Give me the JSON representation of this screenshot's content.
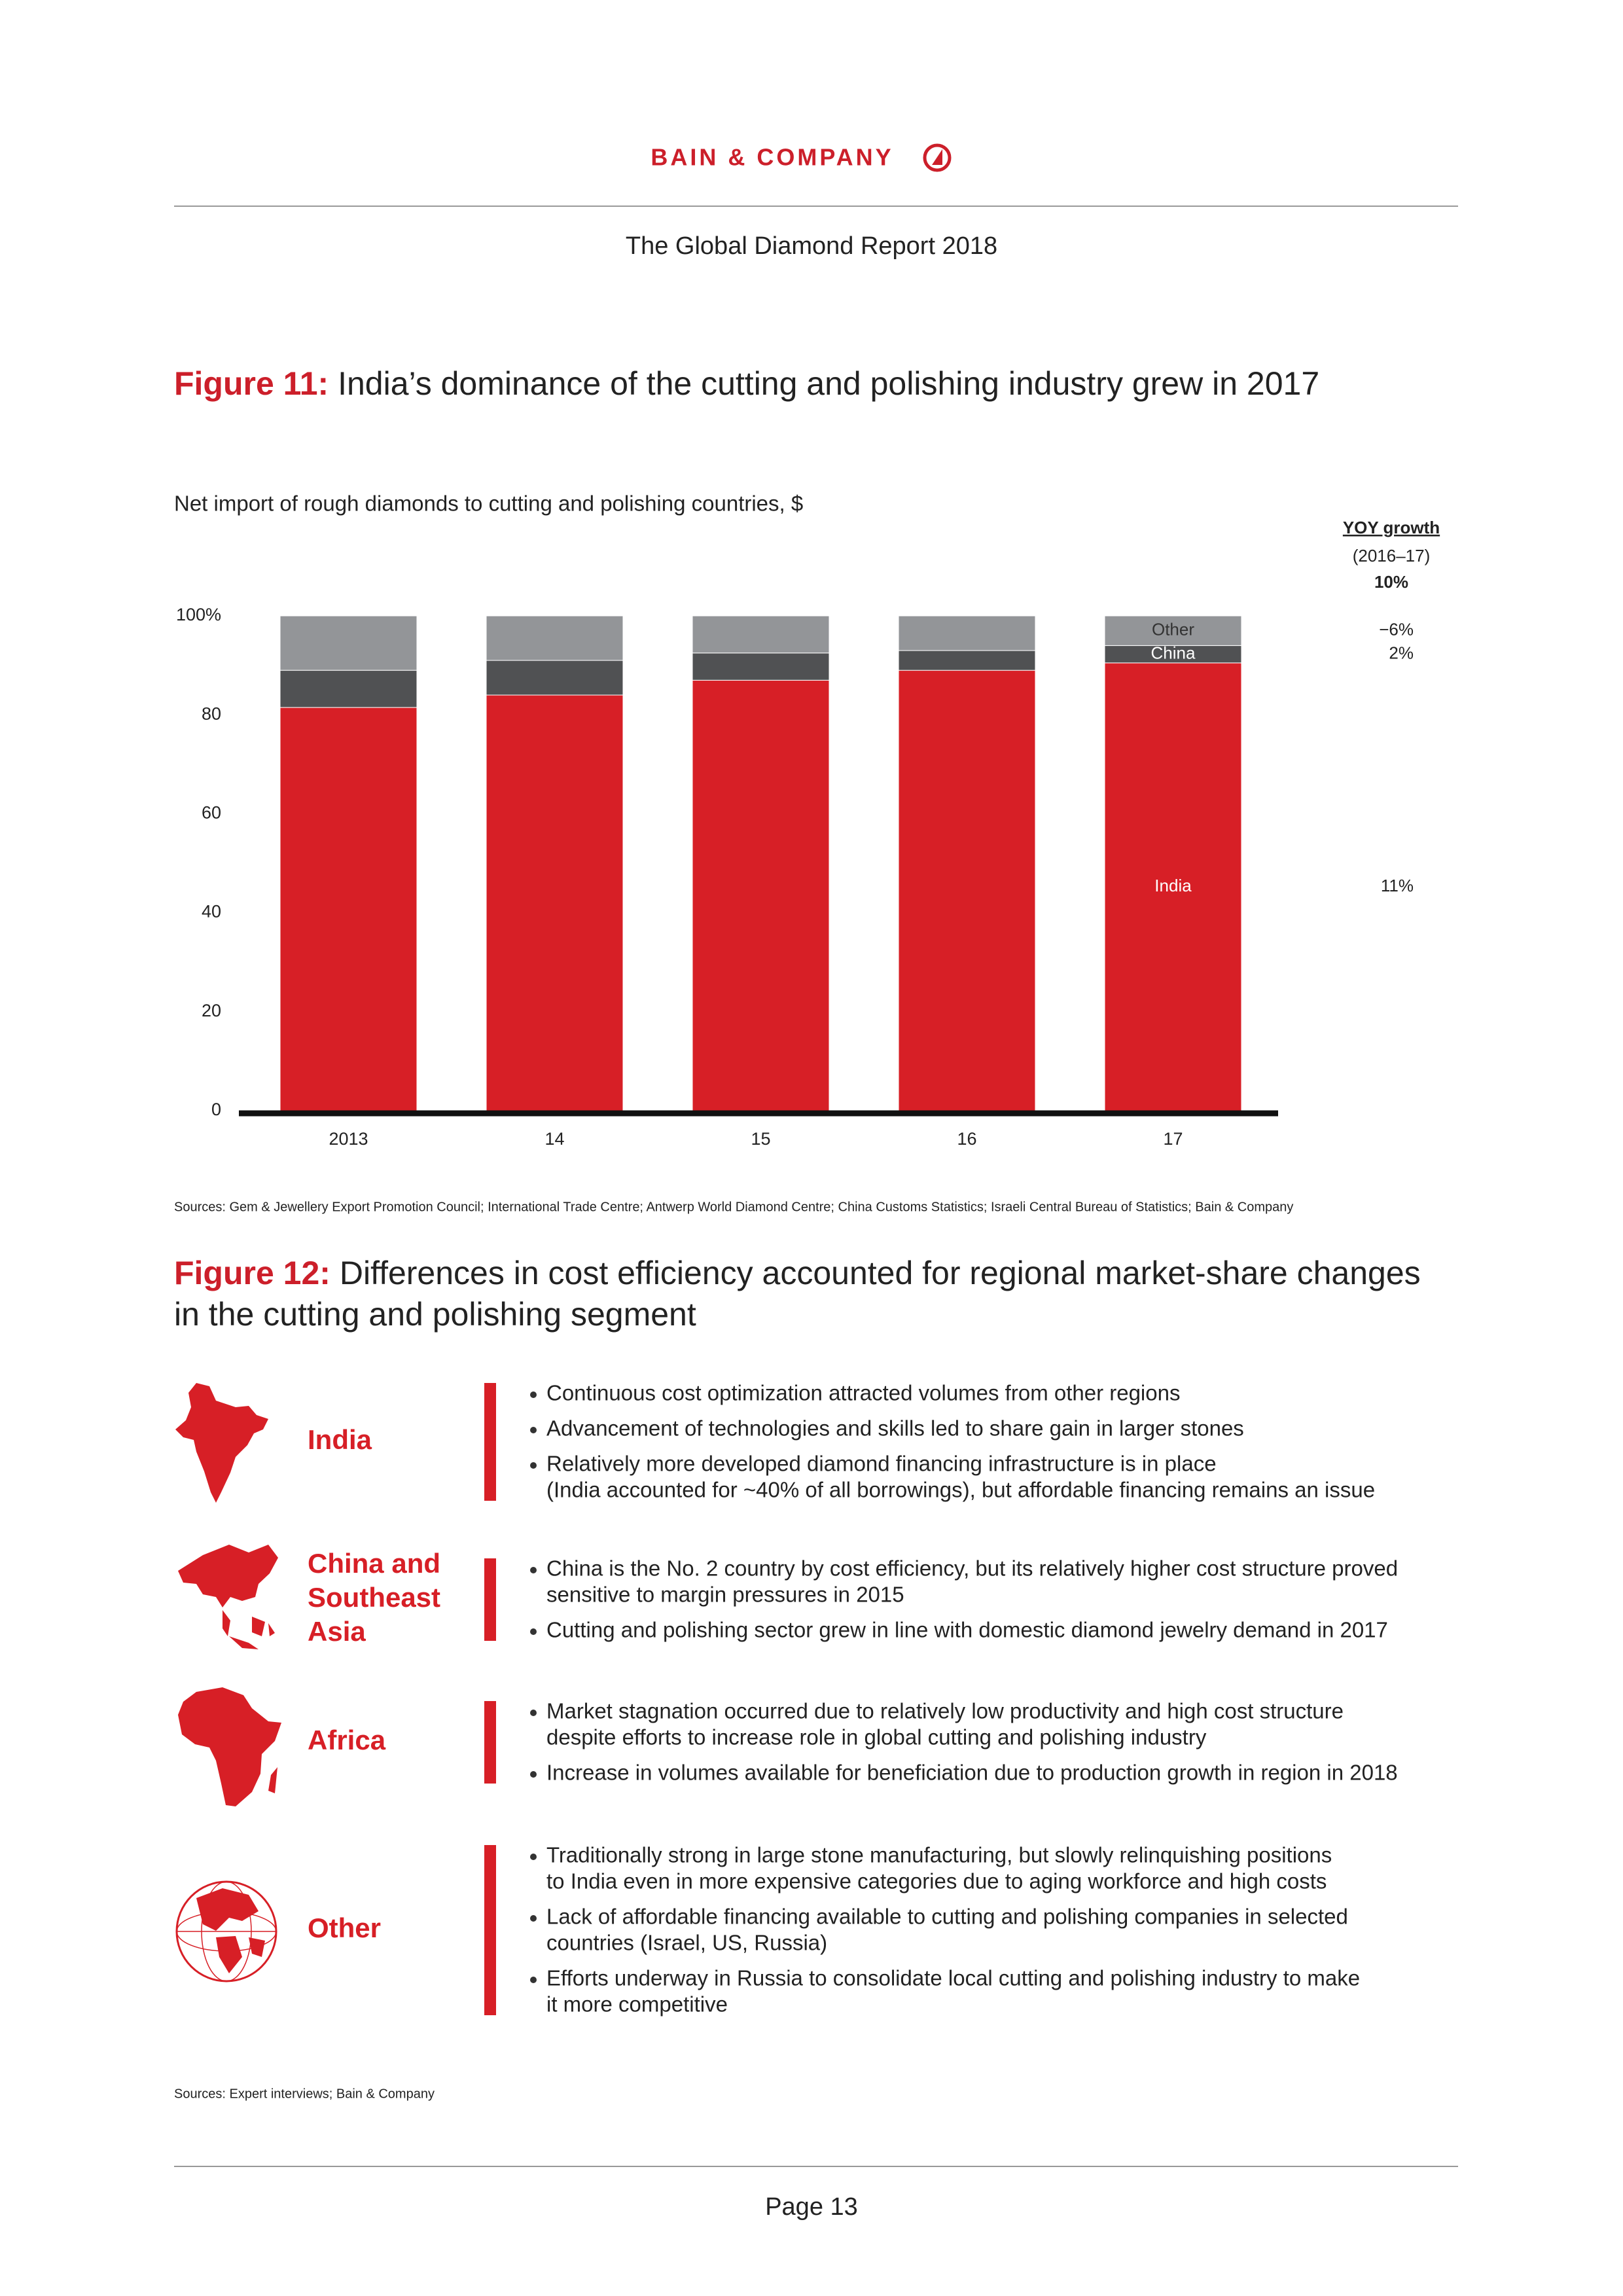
{
  "header": {
    "brand": "BAIN & COMPANY",
    "report_title": "The Global Diamond Report 2018"
  },
  "figure11": {
    "label": "Figure 11:",
    "title": "India’s dominance of the cutting and polishing industry grew in 2017"
  },
  "chart_data": {
    "type": "stacked_bar",
    "subtitle": "Net import of rough diamonds to cutting and polishing countries, $",
    "categories": [
      "2013",
      "14",
      "15",
      "16",
      "17"
    ],
    "series": [
      {
        "name": "India",
        "color": "#d71f26",
        "values": [
          81.5,
          84,
          87,
          89,
          90.5
        ]
      },
      {
        "name": "China",
        "color": "#505153",
        "values": [
          7.5,
          7,
          5.5,
          4,
          3.5
        ]
      },
      {
        "name": "Other",
        "color": "#939598",
        "values": [
          11,
          9,
          7.5,
          7,
          6
        ]
      }
    ],
    "ylim": [
      0,
      100
    ],
    "yticks": [
      0,
      20,
      40,
      60,
      80,
      {
        "value": 100,
        "label": "100%"
      }
    ],
    "grid": false,
    "yoy_growth": {
      "title": "YOY growth",
      "period": "(2016–17)",
      "total": {
        "value": 10,
        "label": "10%"
      },
      "series": [
        {
          "value": 11,
          "label": "11%"
        },
        {
          "value": 2,
          "label": "2%"
        },
        {
          "value": -6,
          "label": "−6%"
        }
      ]
    }
  },
  "figure11_source": "Sources: Gem & Jewellery Export Promotion Council; International Trade Centre; Antwerp World Diamond Centre; China Customs Statistics; Israeli Central Bureau of Statistics; Bain & Company",
  "figure12": {
    "label": "Figure 12:",
    "title_lines": [
      "Differences in cost efficiency accounted for regional market-share changes",
      "in the cutting and polishing segment"
    ]
  },
  "regions": [
    {
      "name_lines": [
        "India"
      ],
      "bullets": [
        [
          "Continuous cost optimization attracted volumes from other regions"
        ],
        [
          "Advancement of technologies and skills led to share gain in larger stones"
        ],
        [
          "Relatively more developed diamond financing infrastructure is in place",
          "(India accounted for ~40% of all borrowings), but affordable financing remains an issue"
        ]
      ]
    },
    {
      "name_lines": [
        "China and",
        "Southeast",
        "Asia"
      ],
      "bullets": [
        [
          "China is the No. 2 country by cost efficiency, but its relatively higher cost structure proved",
          "sensitive to margin pressures in 2015"
        ],
        [
          "Cutting and polishing sector grew in line with domestic diamond jewelry demand in 2017"
        ]
      ]
    },
    {
      "name_lines": [
        "Africa"
      ],
      "bullets": [
        [
          "Market stagnation occurred due to relatively low productivity and high cost structure",
          "despite efforts to increase role in global cutting and polishing industry"
        ],
        [
          "Increase in volumes available for beneficiation due to production growth in region in 2018"
        ]
      ]
    },
    {
      "name_lines": [
        "Other"
      ],
      "bullets": [
        [
          "Traditionally strong in large stone manufacturing, but slowly relinquishing positions",
          "to India even in more expensive categories due to aging workforce and high costs"
        ],
        [
          "Lack of affordable financing available to cutting and polishing companies in selected",
          "countries (Israel, US, Russia)"
        ],
        [
          "Efforts underway in Russia to consolidate local cutting and polishing industry to make",
          "it more competitive"
        ]
      ]
    }
  ],
  "figure12_source": "Sources: Expert interviews; Bain & Company",
  "footer": {
    "page": "Page 13"
  }
}
